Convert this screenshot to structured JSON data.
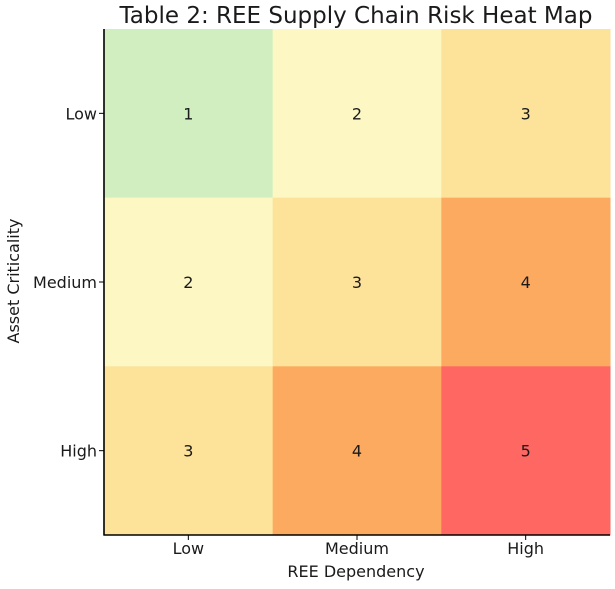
{
  "chart_data": {
    "type": "heatmap",
    "title": "Table 2: REE Supply Chain Risk Heat Map",
    "xlabel": "REE Dependency",
    "ylabel": "Asset Criticality",
    "x_categories": [
      "Low",
      "Medium",
      "High"
    ],
    "y_categories": [
      "Low",
      "Medium",
      "High"
    ],
    "values": [
      [
        1,
        2,
        3
      ],
      [
        2,
        3,
        4
      ],
      [
        3,
        4,
        5
      ]
    ],
    "colorscale": {
      "1": "#d0eec0",
      "2": "#fdf8c3",
      "3": "#fde29a",
      "4": "#fcaa5f",
      "5": "#fe6762"
    },
    "grid": false,
    "legend": "none"
  }
}
